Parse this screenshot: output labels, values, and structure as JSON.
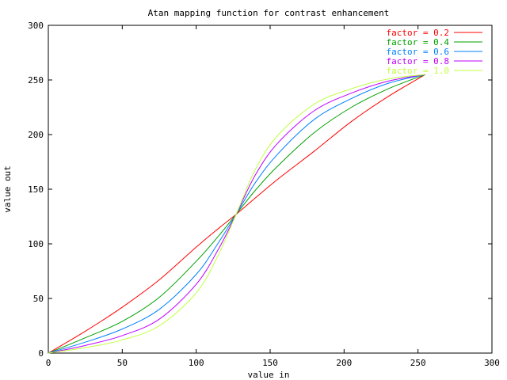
{
  "chart_data": {
    "type": "line",
    "title": "Atan mapping function for contrast enhancement",
    "xlabel": "value in",
    "ylabel": "value out",
    "xlim": [
      0,
      300
    ],
    "ylim": [
      0,
      300
    ],
    "x_ticks": [
      0,
      50,
      100,
      150,
      200,
      250,
      300
    ],
    "y_ticks": [
      0,
      50,
      100,
      150,
      200,
      250,
      300
    ],
    "x_tick_labels": [
      "0",
      "50",
      "100",
      "150",
      "200",
      "250",
      "300"
    ],
    "y_tick_labels": [
      "0",
      "50",
      "100",
      "150",
      "200",
      "250",
      "300"
    ],
    "grid": false,
    "legend_position": "top-right",
    "x": [
      0,
      25,
      50,
      75,
      100,
      115,
      127,
      140,
      155,
      180,
      205,
      230,
      255
    ],
    "series": [
      {
        "name": "factor = 0.2",
        "color": "#ff0000",
        "values": [
          0,
          20,
          42,
          67,
          97,
          114,
          127,
          142,
          159,
          185,
          212,
          235,
          255
        ]
      },
      {
        "name": "factor = 0.4",
        "color": "#00a000",
        "values": [
          0,
          14,
          29,
          51,
          84,
          107,
          127,
          149,
          171,
          202,
          225,
          242,
          255
        ]
      },
      {
        "name": "factor = 0.6",
        "color": "#0080ff",
        "values": [
          0,
          10,
          22,
          40,
          72,
          101,
          127,
          156,
          182,
          214,
          233,
          247,
          255
        ]
      },
      {
        "name": "factor = 0.8",
        "color": "#c000ff",
        "values": [
          0,
          7,
          16,
          31,
          63,
          95,
          127,
          163,
          192,
          222,
          238,
          249,
          255
        ]
      },
      {
        "name": "factor = 1.0",
        "color": "#c0ff40",
        "values": [
          0,
          5,
          12,
          25,
          55,
          90,
          127,
          168,
          199,
          228,
          242,
          251,
          255
        ]
      }
    ]
  }
}
